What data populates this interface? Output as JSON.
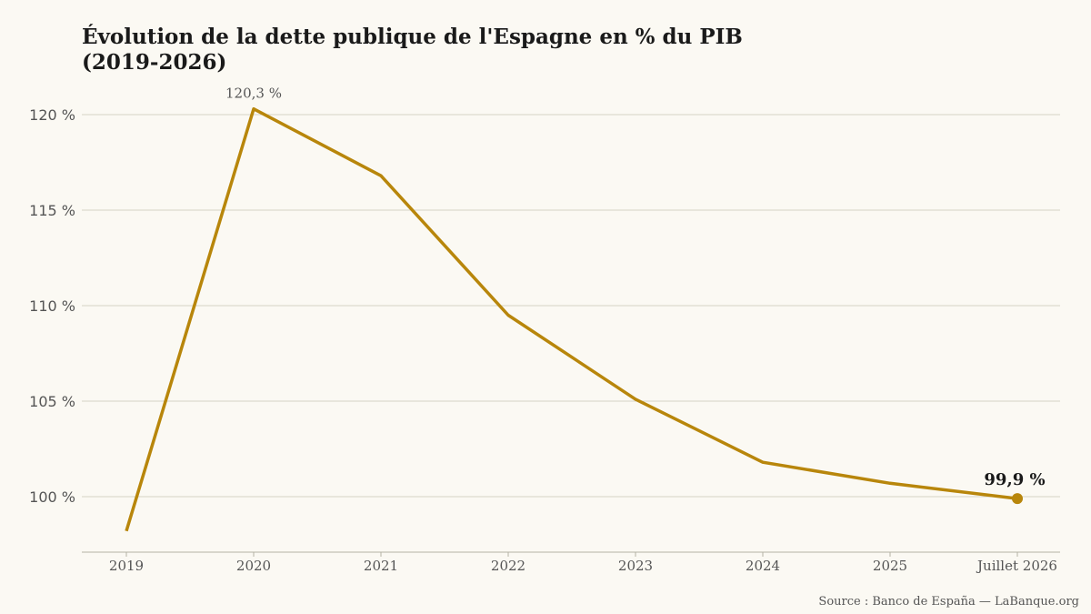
{
  "colors": {
    "background": "#fbf9f3",
    "line": "#b8860b",
    "grid": "#d6d3c4",
    "axis": "#b5b2a4"
  },
  "source": "Source : Banco de España — LaBanque.org",
  "chart_data": {
    "type": "line",
    "title": "Évolution de la dette publique de l'Espagne en % du PIB (2019-2026)",
    "title_lines": [
      "Évolution de la dette publique de l'Espagne en % du PIB",
      "(2019-2026)"
    ],
    "xlabel": "",
    "ylabel": "",
    "categories": [
      "2019",
      "2020",
      "2021",
      "2022",
      "2023",
      "2024",
      "2025",
      "Juillet 2026"
    ],
    "values": [
      98.2,
      120.3,
      116.8,
      109.5,
      105.1,
      101.8,
      100.7,
      99.9
    ],
    "ylim": [
      97,
      121.5
    ],
    "yticks": [
      100,
      105,
      110,
      115,
      120
    ],
    "ytick_labels": [
      "100 %",
      "105 %",
      "110 %",
      "115 %",
      "120 %"
    ],
    "grid": true,
    "annotations": [
      {
        "index": 1,
        "text": "120,3 %"
      },
      {
        "index": 7,
        "text": "99,9 %"
      }
    ]
  }
}
